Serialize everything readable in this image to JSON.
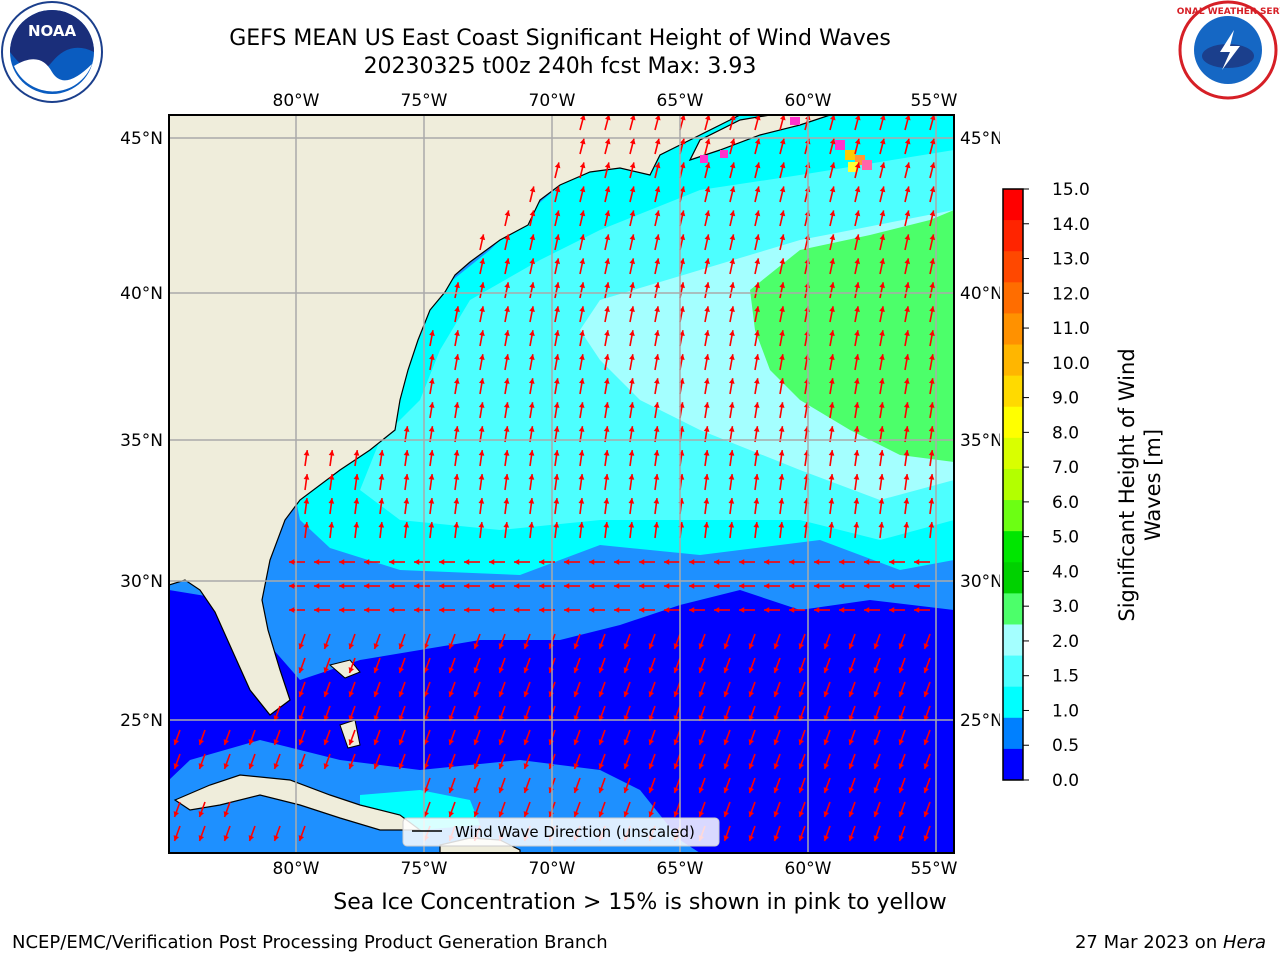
{
  "header": {
    "title_line1": "GEFS MEAN US East Coast Significant Height of Wind Waves",
    "title_line2": "20230325 t00z 240h fcst   Max: 3.93"
  },
  "logos": {
    "left": "NOAA",
    "right": "NATIONAL WEATHER SERVICE"
  },
  "map": {
    "lon_labels": [
      "80°W",
      "75°W",
      "70°W",
      "65°W",
      "60°W",
      "55°W"
    ],
    "lat_labels": [
      "45°N",
      "40°N",
      "35°N",
      "30°N",
      "25°N"
    ],
    "legend_label": "Wind Wave Direction (unscaled)"
  },
  "colorbar": {
    "title_line1": "Significant Height of Wind",
    "title_line2": "Waves [m]",
    "ticks": [
      "15.0",
      "14.0",
      "13.0",
      "12.0",
      "11.0",
      "10.0",
      "9.0",
      "8.0",
      "7.0",
      "6.0",
      "5.0",
      "4.0",
      "3.0",
      "2.0",
      "1.5",
      "1.0",
      "0.5",
      "0.0"
    ],
    "colors_top_to_bottom": [
      "#ff0000",
      "#ff2400",
      "#ff4800",
      "#ff6d00",
      "#ff9100",
      "#ffb600",
      "#ffda00",
      "#ffff00",
      "#d9ff00",
      "#b3ff00",
      "#6cff13",
      "#00e600",
      "#00d100",
      "#4cff6a",
      "#a4ffff",
      "#4dffff",
      "#00ffff",
      "#0080ff",
      "#0000ff"
    ]
  },
  "notes": {
    "sea_ice": "Sea Ice Concentration > 15% is shown in pink to yellow",
    "footer_left": "NCEP/EMC/Verification Post Processing Product Generation Branch",
    "footer_date": "27 Mar 2023 on ",
    "footer_machine": "Hera"
  }
}
